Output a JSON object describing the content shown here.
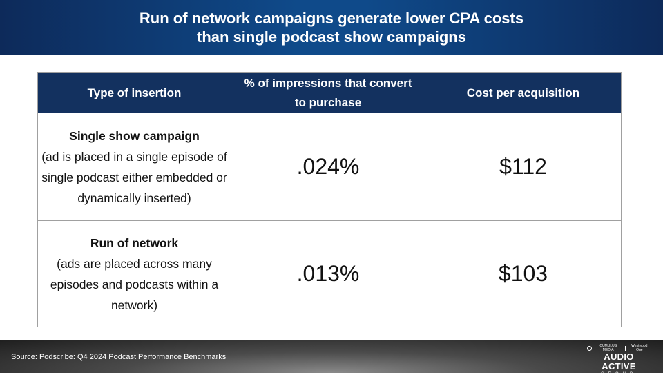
{
  "header": {
    "title_line1": "Run of network campaigns generate lower CPA costs",
    "title_line2": "than single podcast show campaigns"
  },
  "table": {
    "headers": [
      "Type of insertion",
      "% of impressions that convert to purchase",
      "Cost per acquisition"
    ],
    "rows": [
      {
        "type_title": "Single show campaign",
        "type_desc": "(ad is placed in a single episode of single podcast either embedded or dynamically inserted)",
        "conversion": ".024%",
        "cpa": "$112"
      },
      {
        "type_title": "Run of network",
        "type_desc": "(ads are placed across many episodes and podcasts within a network)",
        "conversion": ".013%",
        "cpa": "$103"
      }
    ]
  },
  "footer": {
    "source": "Source: Podscribe: Q4 2024 Podcast Performance Benchmarks",
    "logo": {
      "top_left": "CUMULUS MEDIA",
      "top_right": "Westwood One",
      "brand": "AUDIO ACTIVE",
      "sub": "GROUP"
    }
  },
  "colors": {
    "header_bg": "#0f4a8a",
    "table_header_bg": "#13315f"
  }
}
